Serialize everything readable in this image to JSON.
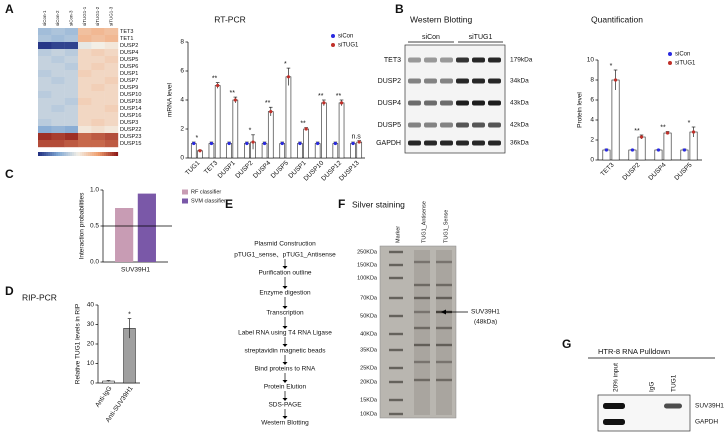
{
  "panel_labels": [
    "A",
    "B",
    "C",
    "D",
    "E",
    "F",
    "G"
  ],
  "chart_data": [
    {
      "type": "heatmap",
      "x": [
        "siCon-1",
        "siCon-2",
        "siCon-3",
        "siTUG1-1",
        "siTUG1-2",
        "siTUG1-3"
      ],
      "y": [
        "TET3",
        "TET1",
        "DUSP2",
        "DUSP4",
        "DUSP5",
        "DUSP6",
        "DUSP1",
        "DUSP7",
        "DUSP9",
        "DUSP10",
        "DUSP18",
        "DUSP14",
        "DUSP16",
        "DUSP3",
        "DUSP22",
        "DUSP23",
        "DUSP15"
      ],
      "values": [
        [
          -0.35,
          -0.3,
          -0.35,
          0.3,
          0.35,
          0.3
        ],
        [
          -0.3,
          -0.35,
          -0.3,
          0.35,
          0.3,
          0.35
        ],
        [
          -0.95,
          -0.9,
          -0.9,
          -0.05,
          0,
          0.05
        ],
        [
          -0.25,
          -0.2,
          -0.25,
          0.15,
          0.2,
          0.15
        ],
        [
          -0.2,
          -0.25,
          -0.2,
          0.15,
          0.15,
          0.2
        ],
        [
          -0.2,
          -0.2,
          -0.25,
          0.15,
          0.2,
          0.15
        ],
        [
          -0.25,
          -0.2,
          -0.2,
          0.2,
          0.15,
          0.15
        ],
        [
          -0.2,
          -0.25,
          -0.2,
          0.15,
          0.15,
          0.2
        ],
        [
          -0.2,
          -0.2,
          -0.2,
          0.15,
          0.2,
          0.15
        ],
        [
          -0.25,
          -0.2,
          -0.2,
          0.15,
          0.15,
          0.15
        ],
        [
          -0.2,
          -0.2,
          -0.25,
          0.2,
          0.15,
          0.15
        ],
        [
          -0.2,
          -0.25,
          -0.2,
          0.15,
          0.15,
          0.2
        ],
        [
          -0.2,
          -0.2,
          -0.2,
          0.15,
          0.15,
          0.15
        ],
        [
          -0.25,
          -0.2,
          -0.2,
          0.15,
          0.2,
          0.15
        ],
        [
          -0.45,
          -0.4,
          -0.45,
          0.05,
          0.1,
          0.05
        ],
        [
          0.9,
          0.85,
          0.9,
          0.7,
          0.75,
          0.8
        ],
        [
          0.8,
          0.8,
          0.75,
          0.7,
          0.7,
          0.75
        ]
      ],
      "zlim": [
        -1,
        1
      ],
      "colormap": [
        "#1d2b7e",
        "#7fa7d3",
        "#f3efe6",
        "#f0a070",
        "#8a1414"
      ]
    },
    {
      "type": "bar",
      "title": "RT-PCR",
      "ylabel": "mRNA level",
      "categories": [
        "TUG1",
        "TET3",
        "DUSP1",
        "DUSP2",
        "DUSP4",
        "DUSP5",
        "DUSP1",
        "DUSP10",
        "DUSP12",
        "DUSP13"
      ],
      "series": [
        {
          "name": "siCon",
          "color": "#2a2ae0",
          "values": [
            1,
            1,
            1,
            1,
            1,
            1,
            1,
            1,
            1,
            1
          ],
          "errors": [
            0.1,
            0.1,
            0.1,
            0.1,
            0.1,
            0.1,
            0.1,
            0.1,
            0.1,
            0.1
          ]
        },
        {
          "name": "siTUG1",
          "color": "#c0302a",
          "values": [
            0.5,
            5,
            4,
            1.1,
            3.2,
            5.6,
            2,
            3.8,
            3.8,
            1.1
          ],
          "errors": [
            0.05,
            0.2,
            0.2,
            0.5,
            0.3,
            0.6,
            0.1,
            0.2,
            0.2,
            0.1
          ]
        }
      ],
      "annotations": [
        "*",
        "**",
        "**",
        "*",
        "**",
        "*",
        "**",
        "**",
        "**",
        "n.s"
      ],
      "ylim": [
        0,
        8
      ],
      "yticks": [
        0,
        2,
        4,
        6,
        8
      ],
      "legend": "upper right",
      "bar_style": "dots"
    },
    {
      "type": "bar",
      "title": "Quantification",
      "ylabel": "Protein level",
      "categories": [
        "TET3",
        "DUSP2",
        "DUSP4",
        "DUSP5"
      ],
      "series": [
        {
          "name": "siCon",
          "color": "#2a2ae0",
          "values": [
            1,
            1,
            1,
            1
          ],
          "errors": [
            0.1,
            0.05,
            0.05,
            0.1
          ]
        },
        {
          "name": "siTUG1",
          "color": "#c0302a",
          "values": [
            8,
            2.3,
            2.7,
            2.8
          ],
          "errors": [
            1,
            0.2,
            0.15,
            0.5
          ]
        }
      ],
      "annotations": [
        "*",
        "**",
        "**",
        "*"
      ],
      "ylim": [
        0,
        10
      ],
      "yticks": [
        0,
        2,
        4,
        6,
        8,
        10
      ],
      "legend": "upper right",
      "bar_style": "dots"
    },
    {
      "type": "bar",
      "ylabel": "Interaction probabilities",
      "categories": [
        "SUV39H1"
      ],
      "series": [
        {
          "name": "RF classifier",
          "color": "#c89cb4",
          "values": [
            0.75
          ]
        },
        {
          "name": "SVM classifier",
          "color": "#7a58a8",
          "values": [
            0.95
          ]
        }
      ],
      "threshold": 0.5,
      "ylim": [
        0,
        1
      ],
      "yticks": [
        {
          "value": 0,
          "label": "0.0"
        },
        0.5,
        {
          "value": 1,
          "label": "1.0"
        }
      ],
      "legend": "outside right",
      "bar_style": "filled"
    },
    {
      "type": "bar",
      "title": "RIP-PCR",
      "ylabel": "Relative TUG1 levels  in RIP",
      "categories": [
        "Anti-IgG",
        "Anti-SUV39H1"
      ],
      "values": [
        1,
        28
      ],
      "errors": [
        0.3,
        5
      ],
      "colors": [
        "#ffffff",
        "#a0a0a0"
      ],
      "annotations": [
        null,
        "*"
      ],
      "ylim": [
        0,
        40
      ],
      "yticks": [
        0,
        10,
        20,
        30,
        40
      ]
    }
  ],
  "western": {
    "title": "Western Blotting",
    "groups": [
      "siCon",
      "siTUG1"
    ],
    "rows": [
      "TET3",
      "DUSP2",
      "DUSP4",
      "DUSP5",
      "GAPDH"
    ],
    "sizes": [
      "179kDa",
      "34kDa",
      "43kDa",
      "42kDa",
      "36kDa"
    ]
  },
  "flowchart": {
    "steps": [
      "Plasmid Construction",
      "pTUG1_sense、pTUG1_Antisense",
      "Purification outline",
      "Enzyme digestion",
      "Transcription",
      "Label RNA using T4 RNA Ligase",
      "streptavidin magnetic beads",
      "Bind proteins to RNA",
      "Protein Elution",
      "SDS-PAGE",
      "Western Blotting"
    ]
  },
  "silver": {
    "title": "Silver staining",
    "lanes": [
      "Marker",
      "TUG1_Antisense",
      "TUG1_Sense"
    ],
    "markers": [
      "250KDa",
      "150KDa",
      "100KDa",
      "70KDa",
      "50KDa",
      "40KDa",
      "35KDa",
      "25KDa",
      "20KDa",
      "15KDa",
      "10KDa"
    ],
    "annotation": [
      "SUV39H1",
      "(48kDa)"
    ]
  },
  "pulldown": {
    "title": "HTR-8  RNA Pulldown",
    "lanes": [
      "20% input",
      "IgG",
      "TUG1"
    ],
    "rows": [
      "SUV39H1",
      "GAPDH"
    ]
  }
}
